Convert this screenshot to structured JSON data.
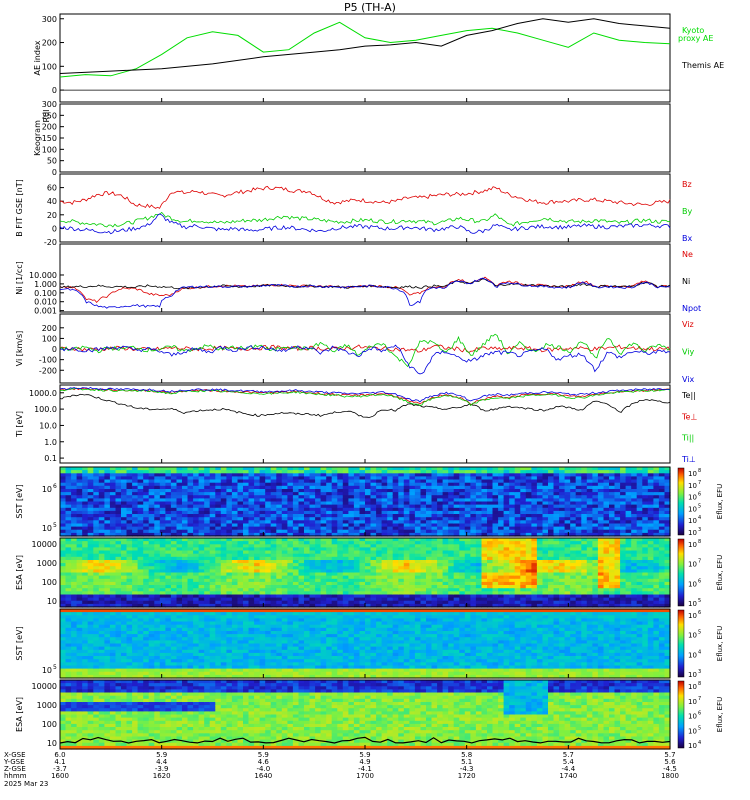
{
  "chart_data": {
    "type": "multi-panel time series with spectrograms",
    "title": "P5 (TH-A)",
    "panels": [
      {
        "id": "ae",
        "ylabel": "AE index",
        "ylim": [
          -50,
          320
        ],
        "yticks": [
          0,
          100,
          200,
          300
        ],
        "series": [
          {
            "name": "Kyoto proxy AE",
            "color": "#00dd00",
            "x": [
              0,
              5,
              10,
              15,
              20,
              25,
              30,
              35,
              40,
              45,
              50,
              55,
              60,
              65,
              70,
              75,
              80,
              85,
              90,
              95,
              100,
              105,
              110,
              115,
              120
            ],
            "y": [
              55,
              65,
              60,
              90,
              150,
              220,
              245,
              230,
              160,
              170,
              240,
              285,
              220,
              200,
              210,
              230,
              250,
              260,
              240,
              210,
              180,
              240,
              210,
              200,
              195
            ]
          },
          {
            "name": "Themis AE",
            "color": "#000000",
            "x": [
              0,
              10,
              20,
              30,
              40,
              50,
              55,
              60,
              65,
              70,
              75,
              80,
              85,
              90,
              95,
              100,
              105,
              110,
              115,
              120
            ],
            "y": [
              70,
              80,
              90,
              110,
              140,
              160,
              170,
              185,
              190,
              200,
              185,
              230,
              250,
              280,
              300,
              285,
              300,
              280,
              270,
              260
            ]
          }
        ]
      },
      {
        "id": "keogram",
        "ylabel": "Keogram",
        "y2label": "R0I",
        "ylim": [
          0,
          300
        ],
        "yticks": [
          0,
          50,
          100,
          150,
          200,
          250,
          300
        ]
      },
      {
        "id": "b",
        "ylabel": "B FIT GSE [nT]",
        "ylim": [
          -20,
          80
        ],
        "yticks": [
          -20,
          0,
          20,
          40,
          60
        ],
        "series": [
          {
            "name": "Bz",
            "color": "#dd0000",
            "y": [
              40,
              38,
              42,
              50,
              52,
              48,
              35,
              33,
              30,
              55,
              52,
              55,
              50,
              48,
              52,
              55,
              58,
              60,
              58,
              55,
              55,
              45,
              38,
              40,
              42,
              40,
              38,
              40,
              45,
              45,
              48,
              50,
              50,
              52,
              55,
              60,
              50,
              45,
              40,
              38,
              40,
              40,
              42,
              42,
              40,
              38,
              36,
              35,
              38,
              40
            ]
          },
          {
            "name": "By",
            "color": "#00cc00",
            "y": [
              12,
              10,
              8,
              6,
              5,
              6,
              10,
              15,
              22,
              15,
              10,
              12,
              10,
              8,
              10,
              12,
              12,
              15,
              18,
              15,
              14,
              12,
              10,
              10,
              12,
              12,
              10,
              10,
              12,
              10,
              8,
              10,
              15,
              12,
              10,
              20,
              5,
              8,
              12,
              15,
              12,
              10,
              10,
              12,
              10,
              8,
              10,
              12,
              10,
              10
            ]
          },
          {
            "name": "Bx",
            "color": "#0000dd",
            "y": [
              2,
              0,
              -2,
              -4,
              -5,
              -3,
              0,
              4,
              20,
              8,
              2,
              4,
              0,
              -2,
              0,
              -3,
              -2,
              0,
              2,
              0,
              -2,
              -4,
              0,
              2,
              3,
              2,
              0,
              0,
              2,
              0,
              -2,
              0,
              3,
              -6,
              -4,
              5,
              -2,
              0,
              2,
              3,
              2,
              2,
              4,
              3,
              2,
              3,
              4,
              5,
              4,
              3
            ]
          }
        ]
      },
      {
        "id": "ni",
        "ylabel": "Ni [1/cc]",
        "yscale": "log",
        "ylim": [
          0.0007,
          30000
        ],
        "yticklabels": [
          "0.001",
          "0.010",
          "0.100",
          "1.000",
          "10.000"
        ],
        "series": [
          {
            "name": "Ne",
            "color": "#dd0000",
            "y": [
              0.5,
              0.4,
              0.02,
              0.01,
              0.05,
              0.3,
              0.3,
              0.08,
              0.05,
              0.06,
              0.3,
              0.4,
              0.5,
              0.6,
              0.6,
              0.5,
              0.6,
              0.8,
              0.7,
              0.6,
              0.6,
              0.5,
              0.5,
              0.4,
              0.5,
              0.6,
              0.5,
              0.4,
              0.05,
              0.1,
              0.5,
              0.4,
              3,
              1,
              5,
              0.5,
              2,
              1,
              0.8,
              0.6,
              0.5,
              0.5,
              2,
              0.5,
              0.6,
              0.5,
              0.5,
              2,
              0.5,
              0.6
            ]
          },
          {
            "name": "Ni",
            "color": "#000000",
            "y": [
              0.4,
              0.5,
              0.5,
              0.6,
              0.5,
              0.5,
              0.4,
              0.6,
              0.5,
              0.4,
              0.3,
              0.4,
              0.5,
              0.6,
              0.5,
              0.5,
              0.6,
              0.7,
              0.6,
              0.5,
              0.6,
              0.5,
              0.5,
              0.4,
              0.5,
              0.6,
              0.5,
              0.4,
              0.5,
              0.4,
              0.6,
              0.5,
              2,
              1,
              3,
              0.5,
              1,
              0.8,
              0.7,
              0.6,
              0.5,
              0.5,
              1,
              0.5,
              0.6,
              0.5,
              0.5,
              1.5,
              0.5,
              0.6
            ]
          },
          {
            "name": "Npot",
            "color": "#0000dd",
            "y": [
              0.3,
              0.2,
              0.01,
              0.003,
              0.002,
              0.003,
              0.004,
              0.003,
              0.003,
              0.05,
              0.4,
              0.5,
              0.5,
              0.5,
              0.5,
              0.5,
              0.6,
              0.7,
              0.6,
              0.5,
              0.6,
              0.5,
              0.5,
              0.4,
              0.5,
              0.6,
              0.5,
              0.3,
              0.003,
              0.01,
              0.4,
              0.3,
              2,
              1,
              4,
              0.4,
              1.5,
              0.8,
              0.6,
              0.5,
              0.4,
              0.4,
              1.5,
              0.4,
              0.5,
              0.4,
              0.4,
              1.5,
              0.4,
              0.5
            ]
          }
        ]
      },
      {
        "id": "vi",
        "ylabel": "Vi [km/s]",
        "ylim": [
          -320,
          330
        ],
        "yticks": [
          -200,
          -100,
          0,
          100,
          200
        ],
        "series": [
          {
            "name": "Viz",
            "color": "#dd0000",
            "y": [
              0,
              10,
              -5,
              0,
              5,
              10,
              0,
              -5,
              0,
              10,
              5,
              0,
              5,
              10,
              0,
              5,
              10,
              20,
              10,
              5,
              10,
              5,
              0,
              10,
              20,
              10,
              5,
              0,
              -10,
              -20,
              30,
              10,
              0,
              -20,
              10,
              0,
              5,
              10,
              0,
              -10,
              0,
              10,
              5,
              0,
              10,
              20,
              10,
              5,
              0,
              0
            ]
          },
          {
            "name": "Viy",
            "color": "#00cc00",
            "y": [
              10,
              -10,
              20,
              -20,
              10,
              0,
              20,
              -10,
              0,
              20,
              -20,
              10,
              30,
              -10,
              20,
              0,
              40,
              -20,
              30,
              10,
              0,
              60,
              -30,
              40,
              -60,
              30,
              50,
              -80,
              -150,
              80,
              60,
              -40,
              100,
              -60,
              40,
              150,
              -50,
              60,
              -30,
              40,
              20,
              -20,
              80,
              -100,
              120,
              -40,
              60,
              -20,
              40,
              0
            ]
          },
          {
            "name": "Vix",
            "color": "#0000dd",
            "y": [
              0,
              5,
              -10,
              -5,
              10,
              20,
              -10,
              0,
              -20,
              -60,
              -20,
              0,
              -30,
              20,
              -10,
              10,
              20,
              0,
              -20,
              30,
              10,
              -40,
              20,
              -30,
              -60,
              10,
              -20,
              40,
              -150,
              -250,
              -60,
              -20,
              -80,
              -120,
              -60,
              -30,
              -40,
              -60,
              -20,
              0,
              -100,
              -60,
              -50,
              -200,
              -30,
              -80,
              -20,
              -40,
              -30,
              -20
            ]
          }
        ]
      },
      {
        "id": "ti",
        "ylabel": "Ti [eV]",
        "yscale": "log",
        "ylim": [
          0.05,
          3000
        ],
        "yticklabels": [
          "0.1",
          "1.0",
          "10.0",
          "100.0",
          "1000.0"
        ],
        "series": [
          {
            "name": "Te||",
            "color": "#000000",
            "y": [
              400,
              700,
              800,
              500,
              300,
              200,
              120,
              100,
              100,
              100,
              60,
              80,
              90,
              100,
              70,
              50,
              40,
              50,
              60,
              50,
              50,
              40,
              60,
              80,
              40,
              30,
              100,
              80,
              200,
              150,
              120,
              100,
              120,
              200,
              80,
              100,
              150,
              120,
              100,
              80,
              150,
              120,
              80,
              300,
              200,
              50,
              200,
              400,
              300,
              250
            ]
          },
          {
            "name": "Te⊥",
            "color": "#dd0000",
            "y": [
              1600,
              1700,
              1800,
              1600,
              1500,
              1400,
              1400,
              1400,
              1200,
              1000,
              1300,
              1400,
              1400,
              1300,
              1200,
              1100,
              1000,
              1000,
              1100,
              1200,
              1000,
              900,
              800,
              700,
              700,
              800,
              900,
              600,
              300,
              200,
              500,
              800,
              500,
              200,
              400,
              600,
              500,
              700,
              800,
              900,
              800,
              600,
              600,
              800,
              1000,
              1200,
              1300,
              1400,
              1500,
              1600
            ]
          },
          {
            "name": "Ti||",
            "color": "#00cc00",
            "y": [
              1500,
              1600,
              1700,
              1500,
              1400,
              1300,
              1300,
              1300,
              1100,
              900,
              1200,
              1300,
              1300,
              1200,
              1100,
              1000,
              900,
              900,
              1000,
              1100,
              900,
              800,
              700,
              600,
              600,
              700,
              800,
              500,
              250,
              180,
              450,
              700,
              450,
              180,
              350,
              500,
              450,
              600,
              700,
              800,
              700,
              500,
              500,
              700,
              900,
              1100,
              1200,
              1300,
              1400,
              1500
            ]
          },
          {
            "name": "Ti⊥",
            "color": "#0000dd",
            "y": [
              1800,
              1900,
              2000,
              1800,
              1700,
              1600,
              1600,
              1600,
              1400,
              1200,
              1500,
              1600,
              1600,
              1500,
              1400,
              1300,
              1200,
              1200,
              1300,
              1400,
              1200,
              1100,
              1000,
              900,
              900,
              1000,
              1100,
              800,
              400,
              300,
              700,
              1000,
              700,
              300,
              600,
              800,
              700,
              900,
              1000,
              1100,
              1000,
              800,
              800,
              1000,
              1200,
              1400,
              1500,
              1600,
              1700,
              1800
            ]
          }
        ]
      },
      {
        "id": "sst_i",
        "ylabel": "SST [eV]",
        "y2label": "Eflux, EFU",
        "ytick_exp": [
          "5",
          "6"
        ],
        "cbar": [
          "3",
          "4",
          "5",
          "6",
          "7",
          "8"
        ]
      },
      {
        "id": "esa_i",
        "ylabel": "ESA [eV]",
        "y2label": "Eflux, EFU",
        "yticklabels": [
          "10",
          "100",
          "1000",
          "10000"
        ],
        "cbar": [
          "5",
          "6",
          "7",
          "8"
        ]
      },
      {
        "id": "sst_e",
        "ylabel": "SST [eV]",
        "y2label": "Eflux, EFU",
        "ytick_exp": [
          "5"
        ],
        "cbar": [
          "3",
          "4",
          "5",
          "6"
        ]
      },
      {
        "id": "esa_e",
        "ylabel": "ESA [eV]",
        "y2label": "Eflux, EFU",
        "yticklabels": [
          "10",
          "100",
          "1000",
          "10000"
        ],
        "cbar": [
          "4",
          "5",
          "6",
          "7",
          "8"
        ]
      }
    ],
    "xaxis": {
      "row_labels": [
        "X-GSE",
        "Y-GSE",
        "Z-GSE",
        "hhmm",
        "2025 Mar 23"
      ],
      "ticks": [
        {
          "x": "1600",
          "xgse": "6.0",
          "ygse": "4.1",
          "zgse": "-3.7"
        },
        {
          "x": "1620",
          "xgse": "5.9",
          "ygse": "4.4",
          "zgse": "-3.9"
        },
        {
          "x": "1640",
          "xgse": "5.9",
          "ygse": "4.6",
          "zgse": "-4.0"
        },
        {
          "x": "1700",
          "xgse": "5.9",
          "ygse": "4.9",
          "zgse": "-4.1"
        },
        {
          "x": "1720",
          "xgse": "5.8",
          "ygse": "5.1",
          "zgse": "-4.3"
        },
        {
          "x": "1740",
          "xgse": "5.7",
          "ygse": "5.4",
          "zgse": "-4.4"
        },
        {
          "x": "1800",
          "xgse": "5.7",
          "ygse": "5.6",
          "zgse": "-4.5"
        }
      ]
    }
  }
}
